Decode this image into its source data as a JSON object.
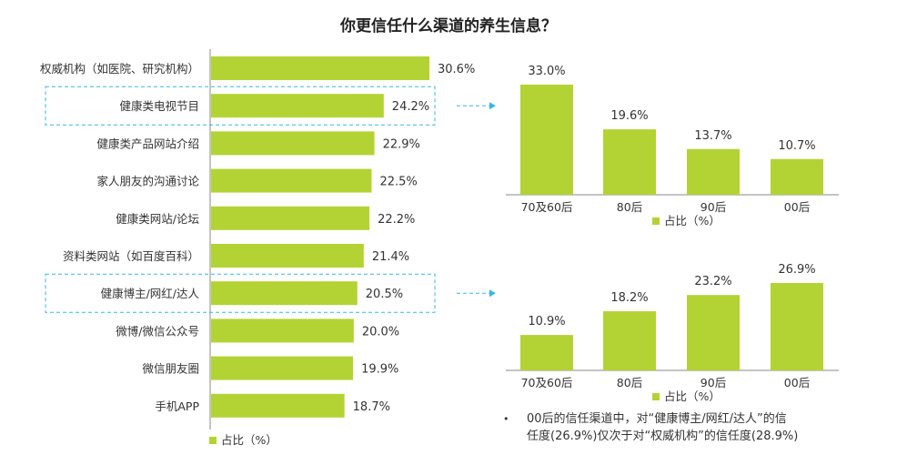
{
  "title": "你更信任什么渠道的养生信息？",
  "colors": {
    "bar": "#b3d334",
    "axis": "#888888",
    "highlight": "#3cb6e0"
  },
  "chart_data": [
    {
      "type": "bar",
      "orientation": "horizontal",
      "categories": [
        "权威机构（如医院、研究机构）",
        "健康类电视节目",
        "健康类产品网站介绍",
        "家人朋友的沟通讨论",
        "健康类网站/论坛",
        "资料类网站（如百度百科）",
        "健康博主/网红/达人",
        "微博/微信公众号",
        "微信朋友圈",
        "手机APP"
      ],
      "values": [
        30.6,
        24.2,
        22.9,
        22.5,
        22.2,
        21.4,
        20.5,
        20.0,
        19.9,
        18.7
      ],
      "labels": [
        "30.6%",
        "24.2%",
        "22.9%",
        "22.5%",
        "22.2%",
        "21.4%",
        "20.5%",
        "20.0%",
        "19.9%",
        "18.7%"
      ],
      "highlighted": [
        "健康类电视节目",
        "健康博主/网红/达人"
      ],
      "legend": "占比（%）",
      "xlim": [
        0,
        35
      ]
    },
    {
      "type": "bar",
      "categories": [
        "70及60后",
        "80后",
        "90后",
        "00后"
      ],
      "values": [
        33.0,
        19.6,
        13.7,
        10.7
      ],
      "labels": [
        "33.0%",
        "19.6%",
        "13.7%",
        "10.7%"
      ],
      "legend": "占比（%）",
      "ylim": [
        0,
        36
      ]
    },
    {
      "type": "bar",
      "categories": [
        "70及60后",
        "80后",
        "90后",
        "00后"
      ],
      "values": [
        10.9,
        18.2,
        23.2,
        26.9
      ],
      "labels": [
        "10.9%",
        "18.2%",
        "23.2%",
        "26.9%"
      ],
      "legend": "占比（%）",
      "ylim": [
        0,
        30
      ]
    }
  ],
  "note": {
    "bullet": "•",
    "line1": "00后的信任渠道中，对“健康博主/网红/达人”的信",
    "line2": "任度(26.9%)仅次于对“权威机构”的信任度(28.9%)"
  }
}
